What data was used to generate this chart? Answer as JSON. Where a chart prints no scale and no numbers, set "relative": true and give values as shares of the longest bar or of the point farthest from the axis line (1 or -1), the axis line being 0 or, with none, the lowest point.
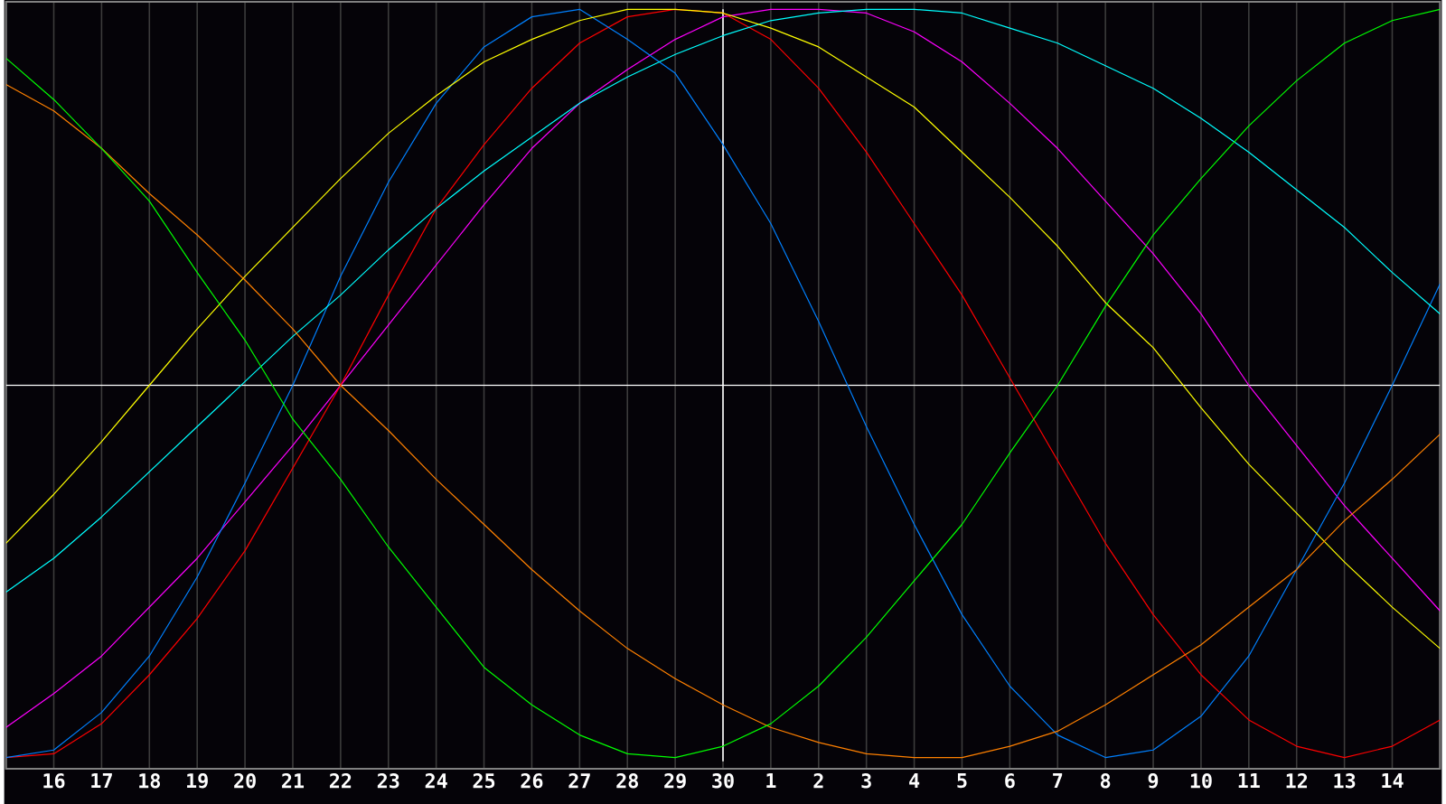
{
  "chart_data": {
    "type": "line",
    "relative": true,
    "grid": "x",
    "categories": [
      null,
      "16",
      "17",
      "18",
      "19",
      "20",
      "21",
      "22",
      "23",
      "24",
      "25",
      "26",
      "27",
      "28",
      "29",
      "30",
      "1",
      "2",
      "3",
      "4",
      "5",
      "6",
      "7",
      "8",
      "9",
      "10",
      "11",
      "12",
      "13",
      "14",
      null
    ],
    "series": [
      {
        "color": "#00ff00",
        "values": [
          0.87,
          0.76,
          0.63,
          0.49,
          0.3,
          0.12,
          -0.09,
          -0.25,
          -0.43,
          -0.59,
          -0.75,
          -0.85,
          -0.93,
          -0.98,
          -0.99,
          -0.96,
          -0.9,
          -0.8,
          -0.67,
          -0.52,
          -0.37,
          -0.18,
          0.0,
          0.21,
          0.4,
          0.55,
          0.69,
          0.81,
          0.91,
          0.97,
          1.0
        ]
      },
      {
        "color": "#ff8000",
        "values": [
          0.8,
          0.73,
          0.63,
          0.51,
          0.4,
          0.28,
          0.15,
          0.0,
          -0.12,
          -0.25,
          -0.37,
          -0.49,
          -0.6,
          -0.7,
          -0.78,
          -0.85,
          -0.91,
          -0.95,
          -0.98,
          -0.99,
          -0.99,
          -0.96,
          -0.92,
          -0.85,
          -0.77,
          -0.69,
          -0.59,
          -0.49,
          -0.36,
          -0.25,
          -0.13
        ]
      },
      {
        "color": "#ffff00",
        "values": [
          -0.42,
          -0.29,
          -0.15,
          0.0,
          0.15,
          0.29,
          0.42,
          0.55,
          0.67,
          0.77,
          0.86,
          0.92,
          0.97,
          1.0,
          1.0,
          0.99,
          0.95,
          0.9,
          0.82,
          0.74,
          0.62,
          0.5,
          0.37,
          0.22,
          0.1,
          -0.06,
          -0.21,
          -0.34,
          -0.47,
          -0.59,
          -0.7
        ]
      },
      {
        "color": "#00ffff",
        "values": [
          -0.55,
          -0.46,
          -0.35,
          -0.23,
          -0.11,
          0.01,
          0.13,
          0.24,
          0.36,
          0.47,
          0.57,
          0.66,
          0.75,
          0.82,
          0.88,
          0.93,
          0.97,
          0.99,
          1.0,
          1.0,
          0.99,
          0.95,
          0.91,
          0.85,
          0.79,
          0.71,
          0.62,
          0.52,
          0.42,
          0.3,
          0.19
        ]
      },
      {
        "color": "#0080ff",
        "values": [
          -0.99,
          -0.97,
          -0.87,
          -0.72,
          -0.51,
          -0.26,
          0.0,
          0.29,
          0.54,
          0.75,
          0.9,
          0.98,
          1.0,
          0.92,
          0.83,
          0.64,
          0.43,
          0.17,
          -0.11,
          -0.37,
          -0.61,
          -0.8,
          -0.93,
          -0.99,
          -0.97,
          -0.88,
          -0.72,
          -0.49,
          -0.26,
          0.0,
          0.27
        ]
      },
      {
        "color": "#ff0000",
        "values": [
          -0.99,
          -0.98,
          -0.9,
          -0.77,
          -0.62,
          -0.44,
          -0.22,
          0.0,
          0.24,
          0.47,
          0.64,
          0.79,
          0.91,
          0.98,
          1.0,
          0.99,
          0.92,
          0.79,
          0.62,
          0.43,
          0.24,
          0.02,
          -0.2,
          -0.42,
          -0.61,
          -0.77,
          -0.89,
          -0.96,
          -0.99,
          -0.96,
          -0.89
        ]
      },
      {
        "color": "#ff00ff",
        "values": [
          -0.91,
          -0.82,
          -0.72,
          -0.59,
          -0.46,
          -0.31,
          -0.16,
          0.0,
          0.16,
          0.32,
          0.48,
          0.63,
          0.75,
          0.84,
          0.92,
          0.98,
          1.0,
          1.0,
          0.99,
          0.94,
          0.86,
          0.75,
          0.63,
          0.49,
          0.35,
          0.19,
          0.0,
          -0.16,
          -0.32,
          -0.46,
          -0.6
        ]
      }
    ],
    "ref_lines": [
      {
        "axis": "x",
        "value": "30",
        "color": "#ffffff"
      },
      {
        "axis": "y",
        "value": 0,
        "color": "#ffffff"
      }
    ]
  }
}
